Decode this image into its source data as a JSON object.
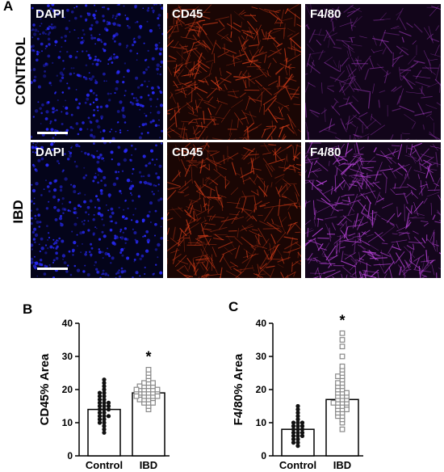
{
  "figure": {
    "panel_a_letter": "A",
    "panel_b_letter": "B",
    "panel_c_letter": "C",
    "row_labels": [
      "CONTROL",
      "IBD"
    ],
    "microscopy": {
      "channels": [
        {
          "label": "DAPI",
          "color": "#2a2bff"
        },
        {
          "label": "CD45",
          "color": "#e0401a"
        },
        {
          "label": "F4/80",
          "color": "#b040d0"
        }
      ],
      "rows": [
        {
          "condition": "CONTROL",
          "tiles": [
            "DAPI",
            "CD45",
            "F4/80"
          ]
        },
        {
          "condition": "IBD",
          "tiles": [
            "DAPI",
            "CD45",
            "F4/80"
          ]
        }
      ]
    }
  },
  "chart_data": [
    {
      "type": "bar",
      "panel": "B",
      "categories": [
        "Control",
        "IBD"
      ],
      "values": [
        14,
        19
      ],
      "ylabel": "CD45% Area",
      "ylim": [
        0,
        40
      ],
      "yticks": [
        0,
        10,
        20,
        30,
        40
      ],
      "significance": [
        "",
        "*"
      ],
      "points": {
        "Control": [
          7,
          8,
          9,
          10,
          11,
          11,
          12,
          12,
          13,
          13,
          14,
          14,
          14,
          15,
          15,
          15,
          16,
          16,
          17,
          17,
          18,
          18,
          19,
          20,
          21,
          22,
          23,
          10,
          12,
          16,
          19
        ],
        "IBD": [
          14,
          15,
          16,
          16,
          17,
          17,
          17,
          18,
          18,
          18,
          18,
          19,
          19,
          19,
          19,
          19,
          20,
          20,
          20,
          20,
          21,
          21,
          21,
          22,
          22,
          23,
          24,
          25,
          26,
          17,
          18,
          19,
          20,
          21,
          16,
          18,
          20,
          22
        ]
      },
      "marker": {
        "Control": "filled-circle",
        "IBD": "open-square"
      }
    },
    {
      "type": "bar",
      "panel": "C",
      "categories": [
        "Control",
        "IBD"
      ],
      "values": [
        8,
        17
      ],
      "ylabel": "F4/80% Area",
      "ylim": [
        0,
        40
      ],
      "yticks": [
        0,
        10,
        20,
        30,
        40
      ],
      "significance": [
        "",
        "*"
      ],
      "points": {
        "Control": [
          3,
          4,
          4,
          5,
          5,
          6,
          6,
          6,
          7,
          7,
          7,
          8,
          8,
          8,
          9,
          9,
          9,
          10,
          10,
          10,
          11,
          12,
          13,
          14,
          15
        ],
        "IBD": [
          8,
          10,
          11,
          12,
          12,
          13,
          13,
          14,
          14,
          15,
          15,
          15,
          16,
          16,
          16,
          17,
          17,
          17,
          18,
          18,
          18,
          19,
          19,
          20,
          20,
          21,
          21,
          22,
          22,
          23,
          24,
          24,
          25,
          26,
          27,
          30,
          33,
          35,
          37,
          14,
          16,
          19
        ]
      },
      "marker": {
        "Control": "filled-circle",
        "IBD": "open-square"
      }
    }
  ]
}
